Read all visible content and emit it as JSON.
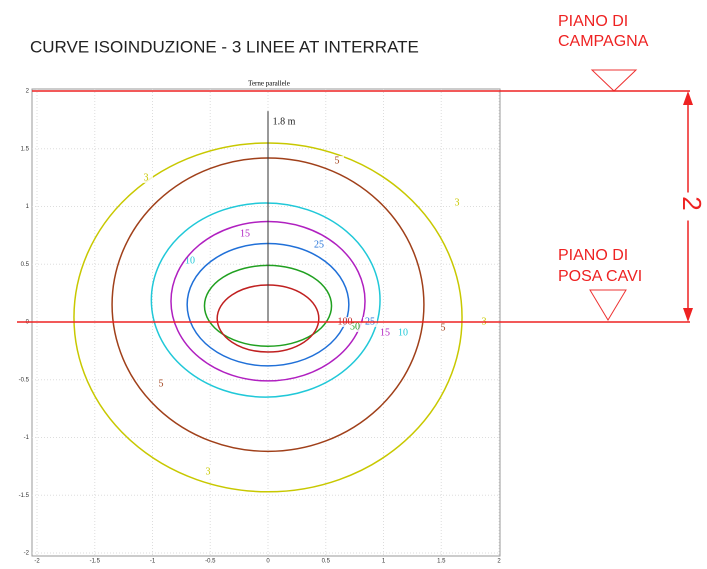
{
  "chart_data": {
    "type": "contour",
    "title": "CURVE ISOINDUZIONE - 3 LINEE AT INTERRATE",
    "plot_title": "Terne parallele",
    "xlim": [
      -2,
      2
    ],
    "ylim": [
      -2,
      2
    ],
    "xticks": [
      -2,
      -1.5,
      -1,
      -0.5,
      0,
      0.5,
      1,
      1.5,
      2
    ],
    "yticks": [
      -2,
      -1.5,
      -1,
      -0.5,
      0,
      0.5,
      1,
      1.5,
      2
    ],
    "grid": true,
    "contours": [
      {
        "level": 3,
        "color": "#c8c800",
        "cx": 0,
        "cy": 0.04,
        "rx": 1.68,
        "ry": 1.51
      },
      {
        "level": 5,
        "color": "#a0401a",
        "cx": 0,
        "cy": 0.15,
        "rx": 1.35,
        "ry": 1.27
      },
      {
        "level": 10,
        "color": "#20c8d8",
        "cx": -0.02,
        "cy": 0.19,
        "rx": 0.99,
        "ry": 0.84
      },
      {
        "level": 15,
        "color": "#b020c0",
        "cx": 0,
        "cy": 0.18,
        "rx": 0.84,
        "ry": 0.69
      },
      {
        "level": 25,
        "color": "#2070d8",
        "cx": 0,
        "cy": 0.15,
        "rx": 0.7,
        "ry": 0.53
      },
      {
        "level": 50,
        "color": "#20a020",
        "cx": 0,
        "cy": 0.14,
        "rx": 0.55,
        "ry": 0.35
      },
      {
        "level": 100,
        "color": "#c02020",
        "cx": 0,
        "cy": 0.03,
        "rx": 0.44,
        "ry": 0.29
      }
    ],
    "axis_top": 1.8,
    "axis_top_label": "1.8 m",
    "ground_level": 2,
    "ground_label": [
      "PIANO DI",
      "CAMPAGNA"
    ],
    "laying_level": 0,
    "laying_label": [
      "PIANO DI",
      "POSA CAVI"
    ],
    "depth": 2
  }
}
